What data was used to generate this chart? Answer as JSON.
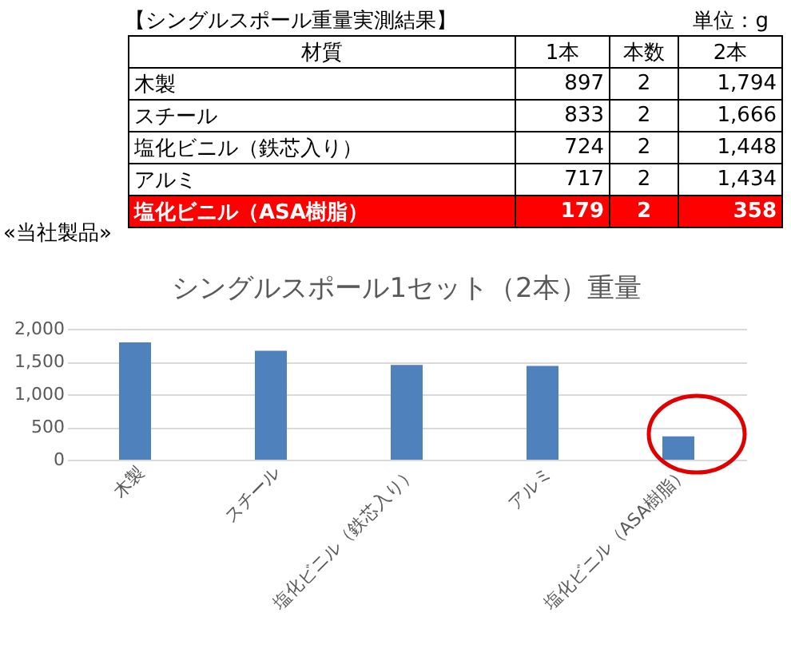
{
  "chart_data": [
    {
      "type": "other",
      "title": "【シングルスポール重量実測結果】",
      "annotations": [
        "単位：g",
        "«当社製品»",
        "材質",
        "1本",
        "本数",
        "2本",
        "木製",
        "897",
        "2",
        "1,794",
        "スチール",
        "833",
        "2",
        "1,666",
        "塩化ビニル（鉄芯入り）",
        "724",
        "2",
        "1,448",
        "アルミ",
        "717",
        "2",
        "1,434",
        "塩化ビニル（ASA樹脂）",
        "179",
        "2",
        "358"
      ]
    },
    {
      "type": "bar",
      "title": "シングルスポール1セット（2本）重量",
      "categories": [
        "木製",
        "スチール",
        "塩化ビニル（鉄芯入り）",
        "アルミ",
        "塩化ビニル（ASA樹脂）"
      ],
      "values": [
        1794,
        1666,
        1448,
        1434,
        358
      ],
      "color": "#4f81bd",
      "ylim": [
        0,
        2000
      ],
      "yticks": [
        0,
        {
          "value": 500,
          "label": "500"
        },
        {
          "value": 1000,
          "label": "1,000"
        },
        {
          "value": 1500,
          "label": "1,500"
        },
        {
          "value": 2000,
          "label": "2,000"
        }
      ],
      "grid": "y"
    }
  ]
}
